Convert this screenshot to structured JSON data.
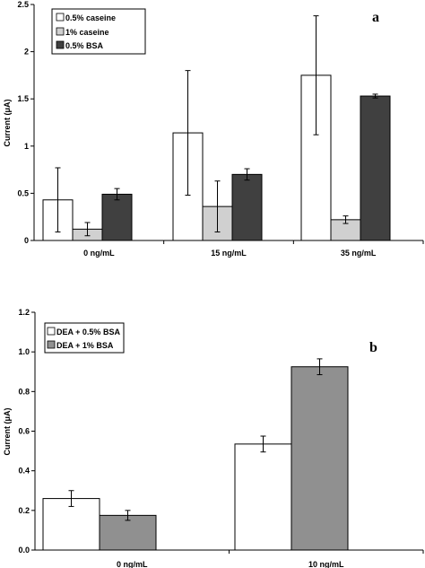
{
  "chart_data": [
    {
      "type": "bar",
      "panel_label": "a",
      "title": "",
      "xlabel": "",
      "ylabel": "Current (μA)",
      "ylim": [
        0,
        2.5
      ],
      "yticks": [
        "0",
        "0.5",
        "1",
        "1.5",
        "2",
        "2.5"
      ],
      "ytick_values": [
        0,
        0.5,
        1,
        1.5,
        2,
        2.5
      ],
      "categories": [
        "0 ng/mL",
        "15 ng/mL",
        "35 ng/mL"
      ],
      "grid": false,
      "legend_position": "top-left",
      "series": [
        {
          "name": "0.5% caseine",
          "color": "#ffffff",
          "values": [
            0.43,
            1.14,
            1.75
          ],
          "errors": [
            0.34,
            0.66,
            0.63
          ]
        },
        {
          "name": "1% caseine",
          "color": "#d0d0d0",
          "values": [
            0.12,
            0.36,
            0.22
          ],
          "errors": [
            0.07,
            0.27,
            0.04
          ]
        },
        {
          "name": "0.5% BSA",
          "color": "#404040",
          "values": [
            0.49,
            0.7,
            1.53
          ],
          "errors": [
            0.06,
            0.06,
            0.02
          ]
        }
      ]
    },
    {
      "type": "bar",
      "panel_label": "b",
      "title": "",
      "xlabel": "",
      "ylabel": "Current (μA)",
      "ylim": [
        0,
        1.2
      ],
      "yticks": [
        "0.0",
        "0.2",
        "0.4",
        "0.6",
        "0.8",
        "1.0",
        "1.2"
      ],
      "ytick_values": [
        0,
        0.2,
        0.4,
        0.6,
        0.8,
        1.0,
        1.2
      ],
      "categories": [
        "0 ng/mL",
        "10 ng/mL"
      ],
      "grid": false,
      "legend_position": "top-left",
      "series": [
        {
          "name": "DEA + 0.5% BSA",
          "color": "#ffffff",
          "values": [
            0.26,
            0.535
          ],
          "errors": [
            0.04,
            0.04
          ]
        },
        {
          "name": "DEA + 1% BSA",
          "color": "#909090",
          "values": [
            0.175,
            0.925
          ],
          "errors": [
            0.025,
            0.04
          ]
        }
      ]
    }
  ]
}
